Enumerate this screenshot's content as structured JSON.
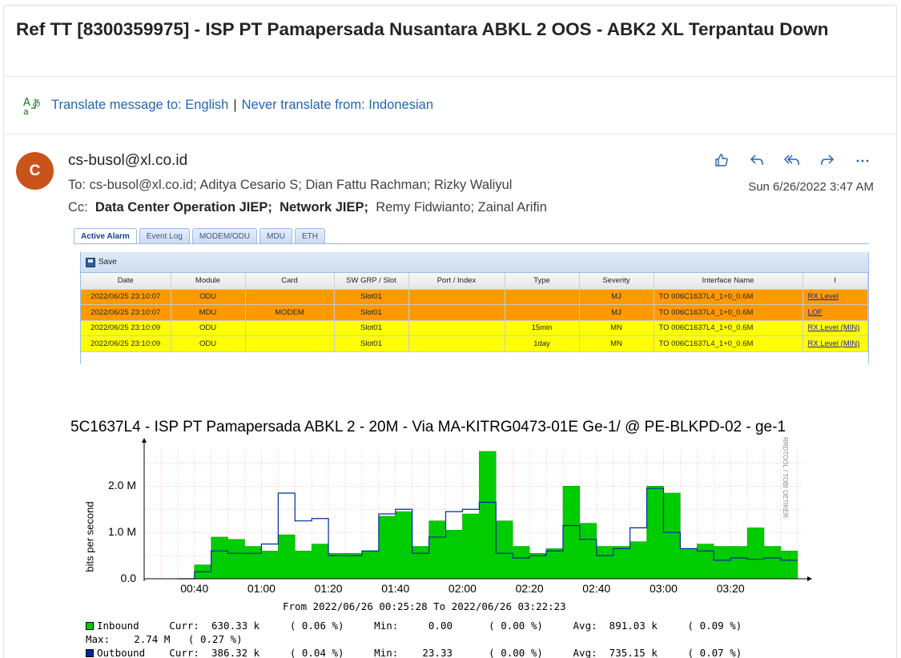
{
  "subject": "Ref TT [8300359975] - ISP PT Pamapersada Nusantara ABKL 2 OOS - ABK2 XL Terpantau Down",
  "translate": {
    "translate_link": "Translate message to: English",
    "sep": "|",
    "never_link": "Never translate from: Indonesian"
  },
  "message": {
    "avatar_initial": "C",
    "sender": "cs-busol@xl.co.id",
    "to": "To:  cs-busol@xl.co.id;  Aditya Cesario S;  Dian Fattu Rachman;  Rizky Waliyul",
    "cc_label": "Cc:",
    "cc_bold1": "Data Center Operation JIEP;",
    "cc_bold2": "Network JIEP;",
    "cc_rest": "Remy Fidwianto;  Zainal Arifin",
    "date": "Sun 6/26/2022 3:47 AM",
    "icons": [
      "like-icon",
      "reply-icon",
      "reply-all-icon",
      "forward-icon",
      "more-icon"
    ]
  },
  "alarm_table": {
    "tabs": [
      "Active Alarm",
      "Event Log",
      "MODEM/ODU",
      "MDU",
      "ETH"
    ],
    "save_label": "Save",
    "columns": [
      "Date",
      "Module",
      "Card",
      "SW GRP / Slot",
      "Port / Index",
      "Type",
      "Severity",
      "Interface Name",
      "I"
    ],
    "rows": [
      {
        "sev": "mj",
        "cells": [
          "2022/06/25 23:10:07",
          "ODU",
          "",
          "Slot01",
          "",
          "",
          "MJ",
          "TO 006C1637L4_1+0_0.6M",
          "RX Level"
        ]
      },
      {
        "sev": "mj",
        "cells": [
          "2022/06/25 23:10:07",
          "MDU",
          "MODEM",
          "Slot01",
          "",
          "",
          "MJ",
          "TO 006C1637L4_1+0_0.6M",
          "LOF"
        ]
      },
      {
        "sev": "mn",
        "cells": [
          "2022/06/25 23:10:09",
          "ODU",
          "",
          "Slot01",
          "",
          "15min",
          "MN",
          "TO 006C1637L4_1+0_0.6M",
          "RX Level (MIN)"
        ]
      },
      {
        "sev": "mn",
        "cells": [
          "2022/06/25 23:10:09",
          "ODU",
          "",
          "Slot01",
          "",
          "1day",
          "MN",
          "TO 006C1637L4_1+0_0.6M",
          "RX Level (MIN)"
        ]
      }
    ]
  },
  "graph": {
    "title": "5C1637L4 - ISP PT Pamapersada ABKL 2 - 20M - Via MA-KITRG0473-01E Ge-1/ @ PE-BLKPD-02 - ge-1",
    "ylabel": "bits per second",
    "side_text": "RRDTOOL / TOBI OETIKER",
    "from_text": "From 2022/06/26 00:25:28 To 2022/06/26 03:22:23",
    "inbound_line": "Inbound     Curr:  630.33 k     ( 0.06 %)     Min:     0.00      ( 0.00 %)     Avg:  891.03 k     ( 0.09 %)",
    "max_line": "Max:    2.74 M   ( 0.27 %)",
    "outbound_line": "Outbound    Curr:  386.32 k     ( 0.04 %)     Min:    23.33      ( 0.00 %)     Avg:  735.15 k     ( 0.07 %)",
    "colors": {
      "inbound": "#00cc00",
      "outbound": "#002a97",
      "grid": "#ff9999"
    }
  },
  "chart_data": {
    "type": "area",
    "title": "5C1637L4 - ISP PT Pamapersada ABKL 2 - 20M - Via MA-KITRG0473-01E Ge-1/ @ PE-BLKPD-02 - ge-1",
    "ylabel": "bits per second",
    "xlabel": "",
    "ylim": [
      0,
      2.8
    ],
    "yticks": [
      "0.0",
      "1.0 M",
      "2.0 M"
    ],
    "xticks": [
      "00:40",
      "01:00",
      "01:20",
      "01:40",
      "02:00",
      "02:20",
      "02:40",
      "03:00",
      "03:20"
    ],
    "x_minutes": [
      15,
      20,
      25,
      30,
      35,
      40,
      45,
      50,
      55,
      60,
      65,
      70,
      75,
      80,
      85,
      90,
      95,
      100,
      105,
      110,
      115,
      120,
      125,
      130,
      135,
      140,
      145,
      150,
      155,
      160,
      165,
      170,
      175,
      180,
      185,
      190,
      195
    ],
    "series": [
      {
        "name": "Inbound",
        "values": [
          0.0,
          0.3,
          0.9,
          0.85,
          0.7,
          0.6,
          0.95,
          0.6,
          0.75,
          0.55,
          0.55,
          0.6,
          1.35,
          1.45,
          0.7,
          1.25,
          1.05,
          1.4,
          2.75,
          1.25,
          0.7,
          0.55,
          0.65,
          2.0,
          1.2,
          0.7,
          0.7,
          0.8,
          2.0,
          1.85,
          0.65,
          0.75,
          0.7,
          0.7,
          1.1,
          0.7,
          0.6
        ]
      },
      {
        "name": "Outbound",
        "values": [
          0.0,
          0.15,
          0.6,
          0.55,
          0.55,
          0.75,
          1.85,
          1.25,
          1.3,
          0.5,
          0.5,
          0.6,
          1.4,
          1.5,
          0.55,
          0.9,
          1.45,
          1.5,
          1.65,
          0.55,
          0.45,
          0.5,
          0.6,
          1.15,
          0.85,
          0.5,
          0.65,
          1.1,
          1.95,
          1.0,
          0.65,
          0.6,
          0.4,
          0.45,
          0.42,
          0.45,
          0.4
        ]
      }
    ]
  }
}
